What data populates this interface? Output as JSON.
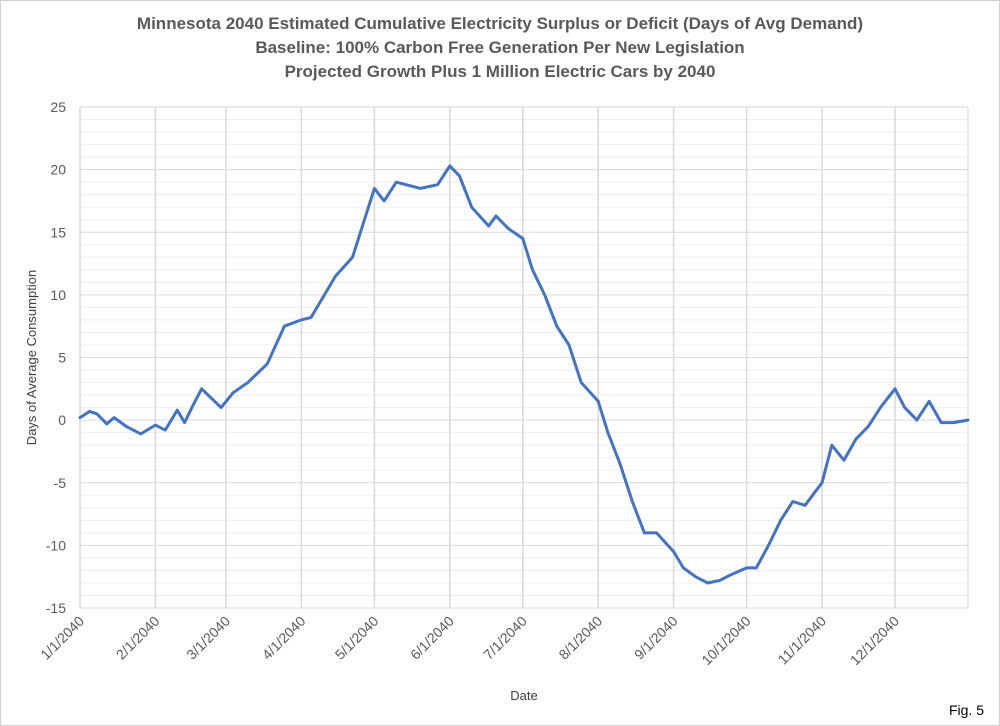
{
  "figure_label": "Fig. 5",
  "chart_data": {
    "type": "line",
    "title": [
      "Minnesota 2040 Estimated Cumulative Electricity Surplus or Deficit (Days of Avg Demand)",
      "Baseline: 100% Carbon Free Generation Per New Legislation",
      "Projected Growth Plus 1 Million Electric Cars by 2040"
    ],
    "xlabel": "Date",
    "ylabel": "Days of Average Consumption",
    "ylim": [
      -15,
      25
    ],
    "yticks": [
      -15,
      -10,
      -5,
      0,
      5,
      10,
      15,
      20,
      25
    ],
    "xlim": [
      "1/1/2040",
      "12/31/2040"
    ],
    "xticks": [
      "1/1/2040",
      "2/1/2040",
      "3/1/2040",
      "4/1/2040",
      "5/1/2040",
      "6/1/2040",
      "7/1/2040",
      "8/1/2040",
      "9/1/2040",
      "10/1/2040",
      "11/1/2040",
      "12/1/2040"
    ],
    "grid": true,
    "line_color": "#4472C4",
    "series": [
      {
        "x": [
          "1/1/2040",
          "1/5/2040",
          "1/8/2040",
          "1/12/2040",
          "1/15/2040",
          "1/20/2040",
          "1/26/2040",
          "2/1/2040",
          "2/5/2040",
          "2/10/2040",
          "2/13/2040",
          "2/16/2040",
          "2/20/2040",
          "2/28/2040",
          "3/4/2040",
          "3/10/2040",
          "3/18/2040",
          "3/25/2040",
          "4/1/2040",
          "4/5/2040",
          "4/15/2040",
          "4/22/2040",
          "5/1/2040",
          "5/5/2040",
          "5/10/2040",
          "5/20/2040",
          "5/27/2040",
          "6/1/2040",
          "6/5/2040",
          "6/10/2040",
          "6/17/2040",
          "6/20/2040",
          "6/25/2040",
          "7/1/2040",
          "7/5/2040",
          "7/10/2040",
          "7/15/2040",
          "7/20/2040",
          "7/25/2040",
          "8/1/2040",
          "8/5/2040",
          "8/10/2040",
          "8/15/2040",
          "8/20/2040",
          "8/25/2040",
          "9/1/2040",
          "9/5/2040",
          "9/10/2040",
          "9/15/2040",
          "9/20/2040",
          "9/25/2040",
          "10/1/2040",
          "10/5/2040",
          "10/10/2040",
          "10/15/2040",
          "10/20/2040",
          "10/25/2040",
          "11/1/2040",
          "11/5/2040",
          "11/10/2040",
          "11/15/2040",
          "11/20/2040",
          "11/25/2040",
          "12/1/2040",
          "12/5/2040",
          "12/10/2040",
          "12/15/2040",
          "12/20/2040",
          "12/25/2040",
          "12/31/2040"
        ],
        "values": [
          0.2,
          0.7,
          0.5,
          -0.3,
          0.2,
          -0.5,
          -1.1,
          -0.4,
          -0.8,
          0.8,
          -0.2,
          1.0,
          2.5,
          1.0,
          2.2,
          3.0,
          4.5,
          7.5,
          8.0,
          8.2,
          11.5,
          13.0,
          18.5,
          17.5,
          19.0,
          18.5,
          18.8,
          20.3,
          19.5,
          17.0,
          15.5,
          16.3,
          15.3,
          14.5,
          12.0,
          10.0,
          7.5,
          6.0,
          3.0,
          1.5,
          -1.0,
          -3.5,
          -6.5,
          -9.0,
          -9.0,
          -10.5,
          -11.8,
          -12.5,
          -13.0,
          -12.8,
          -12.3,
          -11.8,
          -11.8,
          -10.0,
          -8.0,
          -6.5,
          -6.8,
          -5.0,
          -2.0,
          -3.2,
          -1.5,
          -0.5,
          1.0,
          2.5,
          1.0,
          0.0,
          1.5,
          -0.2,
          -0.2,
          0.0
        ]
      }
    ]
  }
}
